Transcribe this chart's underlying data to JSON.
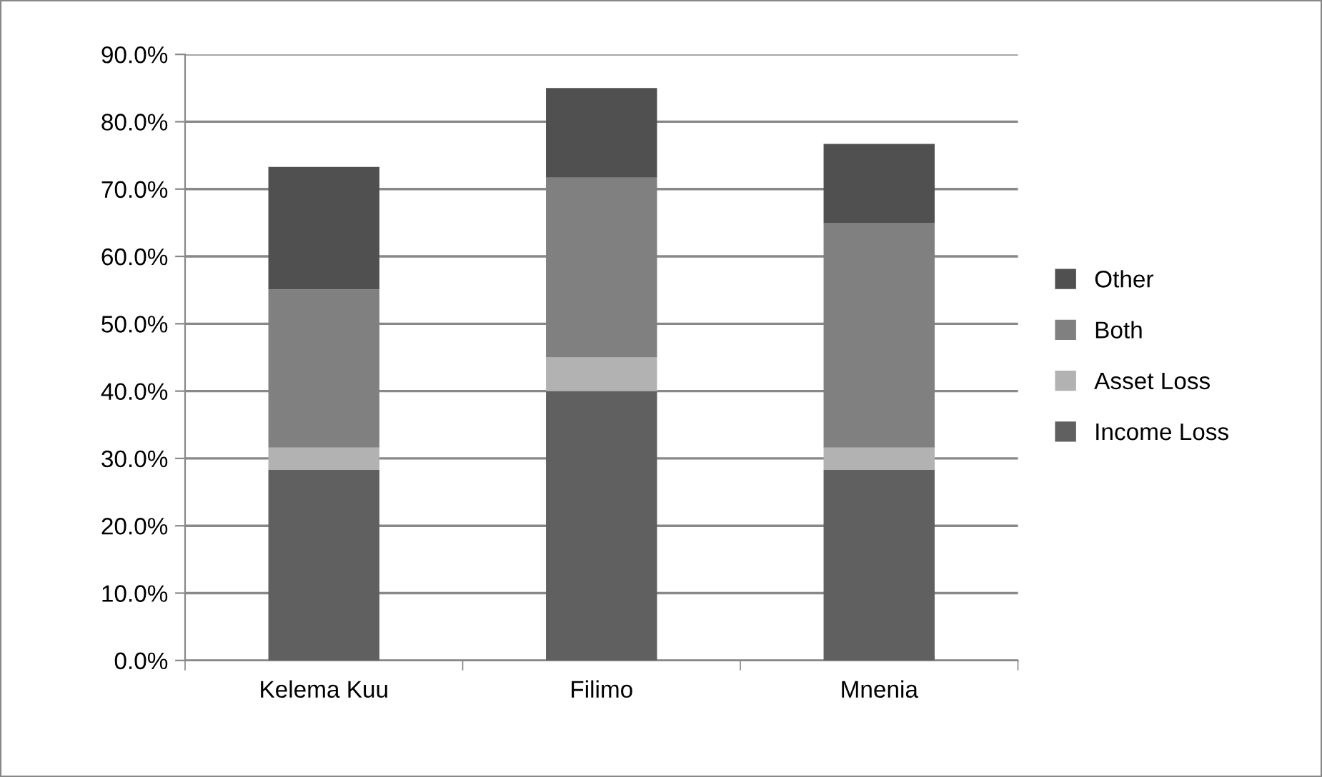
{
  "chart_data": {
    "type": "bar",
    "stacked": true,
    "categories": [
      "Kelema Kuu",
      "Filimo",
      "Mnenia"
    ],
    "series": [
      {
        "name": "Income Loss",
        "color": "#606060",
        "values": [
          28.3,
          40.0,
          28.3
        ]
      },
      {
        "name": "Asset Loss",
        "color": "#b2b2b2",
        "values": [
          3.3,
          5.0,
          3.3
        ]
      },
      {
        "name": "Both",
        "color": "#808080",
        "values": [
          23.5,
          26.7,
          33.4
        ]
      },
      {
        "name": "Other",
        "color": "#505050",
        "values": [
          18.2,
          13.3,
          11.7
        ]
      }
    ],
    "ylim": [
      0,
      90
    ],
    "yticks": [
      {
        "value": 0,
        "label": "0.0%"
      },
      {
        "value": 10,
        "label": "10.0%"
      },
      {
        "value": 20,
        "label": "20.0%"
      },
      {
        "value": 30,
        "label": "30.0%"
      },
      {
        "value": 40,
        "label": "40.0%"
      },
      {
        "value": 50,
        "label": "50.0%"
      },
      {
        "value": 60,
        "label": "60.0%"
      },
      {
        "value": 70,
        "label": "70.0%"
      },
      {
        "value": 80,
        "label": "80.0%"
      },
      {
        "value": 90,
        "label": "90.0%"
      }
    ],
    "grid": "y",
    "legend": "right"
  }
}
